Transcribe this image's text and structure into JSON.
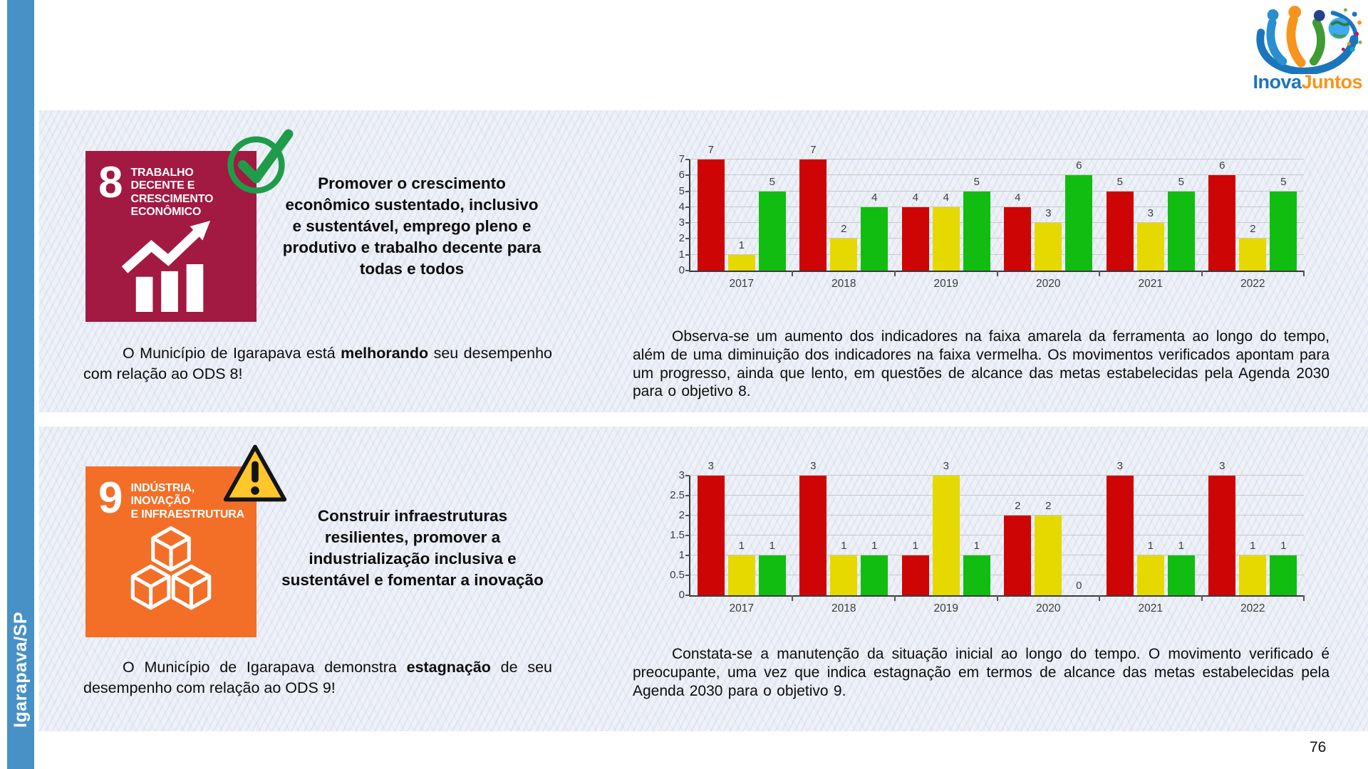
{
  "page": {
    "sidebar_label": "Igarapava/SP",
    "number": "76",
    "logo_part1": "Inova",
    "logo_part2": "Juntos"
  },
  "colors": {
    "sidebar_blue": "#4791c6",
    "sdg8_tile": "#a21942",
    "sdg9_tile": "#f36f28",
    "check_green": "#1f9c49",
    "warning_yellow": "#ffc72c",
    "bar_red": "#ce0505",
    "bar_yellow": "#e5d900",
    "bar_green": "#12bd12"
  },
  "ods8": {
    "goal_number": "8",
    "tile_title_lines": [
      "TRABALHO DECENTE E",
      "CRESCIMENTO",
      "ECONÔMICO"
    ],
    "status_icon": "check-circle",
    "headline": "Promover o crescimento econômico sustentado, inclusivo e sustentável, emprego pleno e produtivo e trabalho decente para todas e todos",
    "summary_prefix": "O Município de Igarapava está ",
    "summary_bold": "melhorando",
    "summary_suffix": " seu desempenho com relação ao ODS 8!",
    "analysis": "Observa-se um aumento dos indicadores na faixa amarela da ferramenta ao longo do tempo, além de uma diminuição dos indicadores na faixa vermelha. Os movimentos verificados apontam para um progresso, ainda que lento, em questões de alcance das metas estabelecidas pela Agenda 2030 para o objetivo 8."
  },
  "ods9": {
    "goal_number": "9",
    "tile_title_lines": [
      "INDÚSTRIA, INOVAÇÃO",
      "E INFRAESTRUTURA"
    ],
    "status_icon": "warning-triangle",
    "headline": "Construir infraestruturas resilientes, promover a industrialização inclusiva e sustentável e fomentar a inovação",
    "summary_prefix": "O Município de Igarapava demonstra ",
    "summary_bold": "estagnação",
    "summary_suffix": " de seu desempenho com relação ao ODS 9!",
    "analysis": "Constata-se a manutenção da situação inicial ao longo do tempo. O movimento verificado é preocupante, uma vez que indica estagnação em termos de alcance das metas estabelecidas pela Agenda 2030 para o objetivo 9."
  },
  "chart_data": [
    {
      "type": "bar",
      "title": "",
      "xlabel": "",
      "ylabel": "",
      "categories": [
        "2017",
        "2018",
        "2019",
        "2020",
        "2021",
        "2022"
      ],
      "series": [
        {
          "name": "faixa-vermelha",
          "color": "#ce0505",
          "values": [
            7,
            7,
            4,
            4,
            5,
            6
          ]
        },
        {
          "name": "faixa-amarela",
          "color": "#e5d900",
          "values": [
            1,
            2,
            4,
            3,
            3,
            2
          ]
        },
        {
          "name": "faixa-verde",
          "color": "#12bd12",
          "values": [
            5,
            4,
            5,
            6,
            5,
            5
          ]
        }
      ],
      "ylim": [
        0,
        7
      ],
      "yticks": [
        "0",
        "1",
        "2",
        "3",
        "4",
        "5",
        "6",
        "7"
      ],
      "grid": true,
      "legend": "none"
    },
    {
      "type": "bar",
      "title": "",
      "xlabel": "",
      "ylabel": "",
      "categories": [
        "2017",
        "2018",
        "2019",
        "2020",
        "2021",
        "2022"
      ],
      "series": [
        {
          "name": "faixa-vermelha",
          "color": "#ce0505",
          "values": [
            3,
            3,
            1,
            2,
            3,
            3
          ]
        },
        {
          "name": "faixa-amarela",
          "color": "#e5d900",
          "values": [
            1,
            1,
            3,
            2,
            1,
            1
          ]
        },
        {
          "name": "faixa-verde",
          "color": "#12bd12",
          "values": [
            1,
            1,
            1,
            0,
            1,
            1
          ]
        }
      ],
      "ylim": [
        0,
        3
      ],
      "yticks": [
        "0",
        "0.5",
        "1",
        "1.5",
        "2",
        "2.5",
        "3"
      ],
      "grid": true,
      "legend": "none"
    }
  ]
}
